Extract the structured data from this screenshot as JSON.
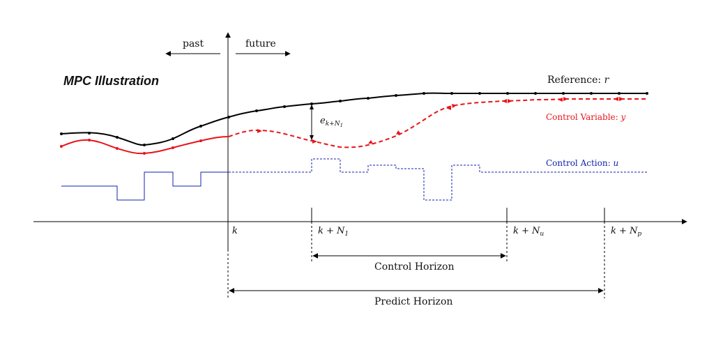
{
  "title": "MPC Illustration",
  "past_label": "past",
  "future_label": "future",
  "legend": {
    "reference": "Reference: r",
    "control_variable": "Control Variable: y",
    "control_action": "Control Action: u"
  },
  "error_label": "e_{k+N1}",
  "ticks": {
    "k": "k",
    "n1": "k + N1",
    "nu": "k + Nu",
    "np": "k + Np"
  },
  "horizons": {
    "control": "Control Horizon",
    "predict": "Predict Horizon"
  },
  "colors": {
    "reference": "#000000",
    "control_variable": "#e8141b",
    "control_action": "#1020b0"
  }
}
